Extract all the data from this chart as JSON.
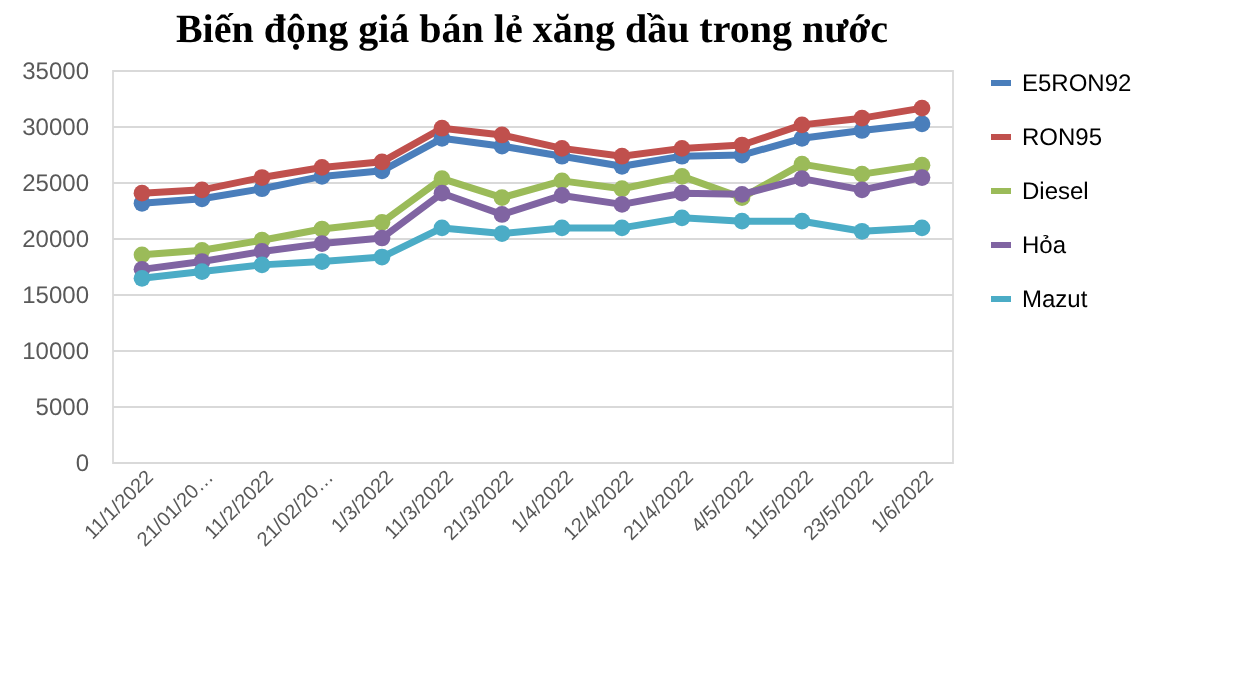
{
  "chart_data": {
    "type": "line",
    "title": "Biến động giá bán lẻ xăng dầu trong nước",
    "categories": [
      "11/1/2022",
      "21/01/20…",
      "11/2/2022",
      "21/02/20…",
      "1/3/2022",
      "11/3/2022",
      "21/3/2022",
      "1/4/2022",
      "12/4/2022",
      "21/4/2022",
      "4/5/2022",
      "11/5/2022",
      "23/5/2022",
      "1/6/2022"
    ],
    "series": [
      {
        "name": "E5RON92",
        "color": "#4a7ebb",
        "values": [
          23100,
          23500,
          24400,
          25500,
          26000,
          28900,
          28200,
          27300,
          26400,
          27300,
          27400,
          28900,
          29600,
          30200
        ]
      },
      {
        "name": "RON95",
        "color": "#c0504d",
        "values": [
          24000,
          24300,
          25400,
          26300,
          26800,
          29800,
          29200,
          28000,
          27300,
          28000,
          28300,
          30100,
          30700,
          31600
        ]
      },
      {
        "name": "Diesel",
        "color": "#9bbb59",
        "values": [
          18500,
          18900,
          19800,
          20800,
          21400,
          25300,
          23600,
          25100,
          24400,
          25500,
          23600,
          26600,
          25700,
          26500
        ]
      },
      {
        "name": "Hỏa",
        "color": "#8064a2",
        "values": [
          17200,
          17900,
          18800,
          19500,
          20000,
          24000,
          22100,
          23800,
          23000,
          24000,
          23900,
          25300,
          24300,
          25400
        ]
      },
      {
        "name": "Mazut",
        "color": "#4bacc6",
        "values": [
          16400,
          17000,
          17600,
          17900,
          18300,
          20900,
          20400,
          20900,
          20900,
          21800,
          21500,
          21500,
          20600,
          20900
        ]
      }
    ],
    "ylim": [
      0,
      35000
    ],
    "yticks": [
      0,
      5000,
      10000,
      15000,
      20000,
      25000,
      30000,
      35000
    ],
    "grid": "y",
    "legend": "right",
    "marker": "circle",
    "line_style": "solid"
  }
}
